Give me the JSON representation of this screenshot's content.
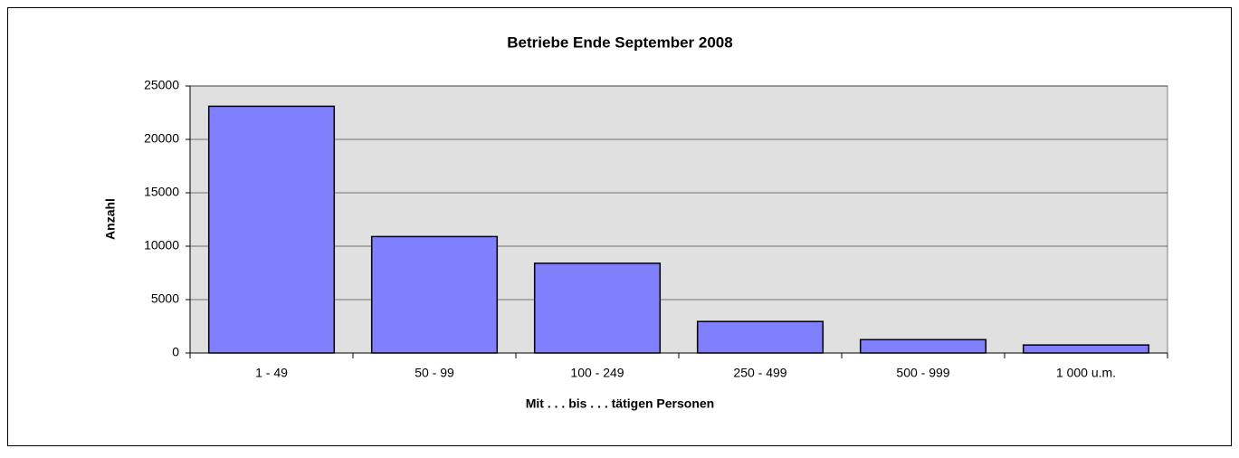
{
  "chart_data": {
    "type": "bar",
    "title": "Betriebe Ende September 2008",
    "x_label": "Mit . . . bis . . . tätigen Personen",
    "y_label": "Anzahl",
    "categories": [
      "1 - 49",
      "50 - 99",
      "100 - 249",
      "250 - 499",
      "500 - 999",
      "1 000 u.m."
    ],
    "values": [
      23100,
      10900,
      8400,
      2950,
      1250,
      750
    ],
    "color": "#8080ff",
    "ylim": [
      0,
      25000
    ],
    "yticks": [
      0,
      5000,
      10000,
      15000,
      20000,
      25000
    ],
    "grid": true
  }
}
